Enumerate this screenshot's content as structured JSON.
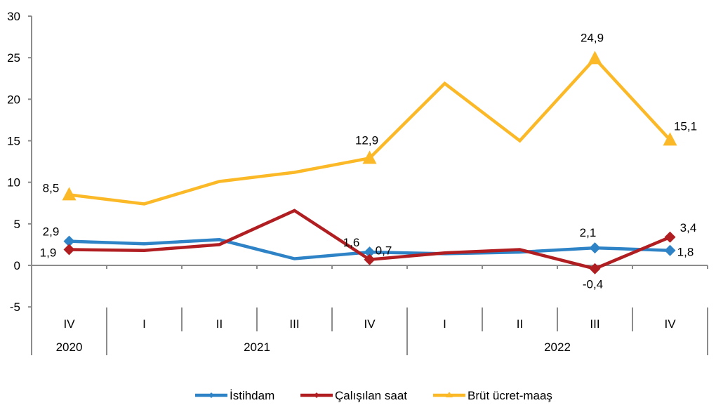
{
  "chart_data": {
    "type": "line",
    "title": "",
    "xlabel": "",
    "ylabel": "",
    "ylim": [
      -5,
      30
    ],
    "yticks": [
      -5,
      0,
      5,
      10,
      15,
      20,
      25,
      30
    ],
    "grid": false,
    "legend_position": "bottom",
    "categories": [
      "IV",
      "I",
      "II",
      "III",
      "IV",
      "I",
      "II",
      "III",
      "IV"
    ],
    "category_groups": [
      {
        "label": "2020",
        "count": 1
      },
      {
        "label": "2021",
        "count": 4
      },
      {
        "label": "2022",
        "count": 4
      }
    ],
    "series": [
      {
        "name": "İstihdam",
        "color": "#2E83C6",
        "marker": "diamond",
        "values": [
          2.9,
          2.6,
          3.1,
          0.8,
          1.6,
          1.4,
          1.6,
          2.1,
          1.8
        ],
        "labels": [
          "2,9",
          null,
          null,
          null,
          "1,6",
          null,
          null,
          "2,1",
          "1,8"
        ]
      },
      {
        "name": "Çalışılan saat",
        "color": "#B01E22",
        "marker": "diamond",
        "values": [
          1.9,
          1.8,
          2.5,
          6.6,
          0.7,
          1.5,
          1.9,
          -0.4,
          3.4
        ],
        "labels": [
          "1,9",
          null,
          null,
          null,
          "0,7",
          null,
          null,
          "-0,4",
          "3,4"
        ]
      },
      {
        "name": "Brüt ücret-maaş",
        "color": "#FBB927",
        "marker": "triangle",
        "values": [
          8.5,
          7.4,
          10.1,
          11.2,
          12.9,
          21.9,
          15.0,
          24.9,
          15.1
        ],
        "labels": [
          "8,5",
          null,
          null,
          null,
          "12,9",
          null,
          null,
          "24,9",
          "15,1"
        ]
      }
    ]
  }
}
